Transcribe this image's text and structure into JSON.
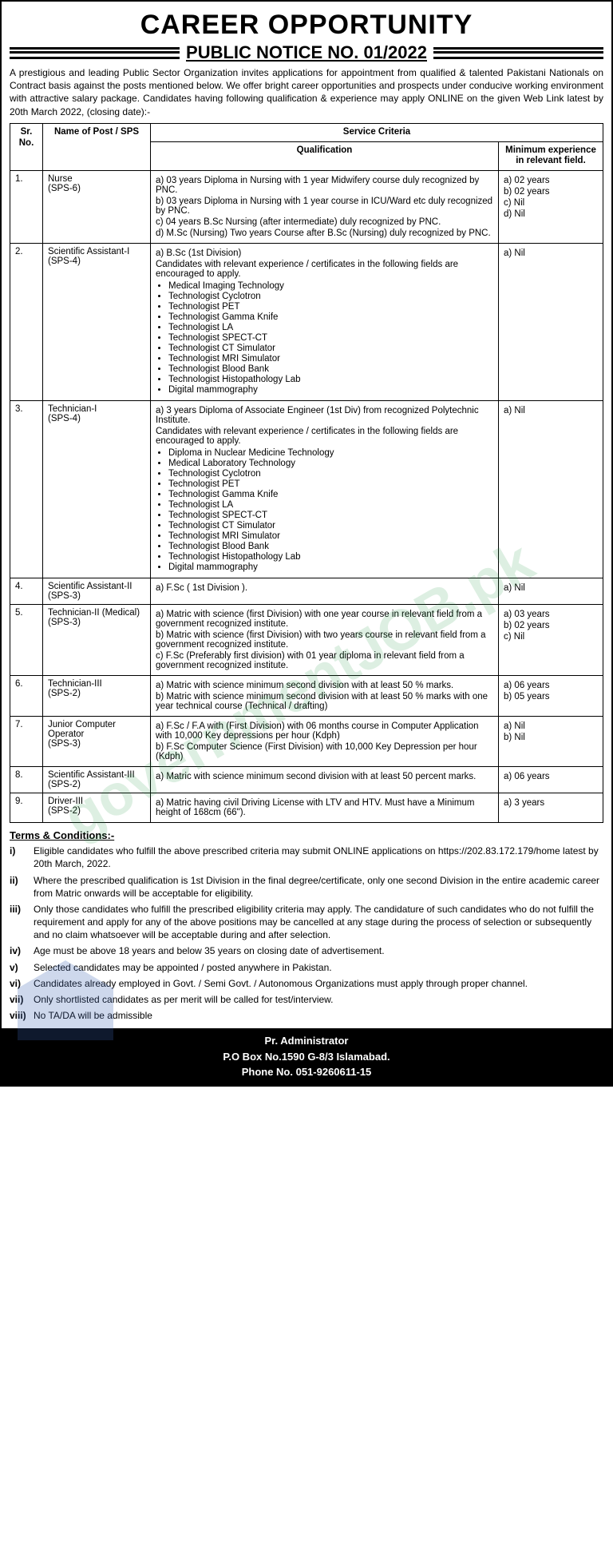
{
  "title": "CAREER OPPORTUNITY",
  "notice": "PUBLIC NOTICE NO. 01/2022",
  "intro": "A prestigious and leading Public Sector Organization invites applications for appointment from qualified & talented Pakistani Nationals on Contract basis against the posts mentioned below. We offer bright career opportunities and prospects under conducive working environment with attractive salary package. Candidates having following qualification & experience may apply ONLINE on the given Web Link latest by 20th March 2022, (closing date):-",
  "th_sr": "Sr. No.",
  "th_post": "Name of Post / SPS",
  "th_service": "Service Criteria",
  "th_qual": "Qualification",
  "th_exp": "Minimum experience in relevant field.",
  "rows": [
    {
      "sr": "1.",
      "post": "Nurse",
      "sps": "(SPS-6)",
      "qual": [
        "a) 03 years Diploma in Nursing with 1 year Midwifery course duly recognized by PNC.",
        "b) 03 years Diploma in Nursing with 1 year course in ICU/Ward etc duly recognized by PNC.",
        "c) 04 years B.Sc Nursing (after intermediate) duly recognized by PNC.",
        "d) M.Sc (Nursing) Two years Course after B.Sc (Nursing) duly recognized by PNC."
      ],
      "exp": [
        "a) 02 years",
        "b) 02 years",
        "c) Nil",
        "d) Nil"
      ]
    },
    {
      "sr": "2.",
      "post": "Scientific Assistant-I",
      "sps": "(SPS-4)",
      "qual_lead": "a) B.Sc (1st Division)",
      "qual_note": "Candidates with relevant experience / certificates in the following fields are encouraged to apply.",
      "bullets": [
        "Medical Imaging Technology",
        "Technologist Cyclotron",
        "Technologist PET",
        "Technologist Gamma Knife",
        "Technologist LA",
        "Technologist SPECT-CT",
        "Technologist CT Simulator",
        "Technologist MRI Simulator",
        "Technologist Blood Bank",
        "Technologist Histopathology Lab",
        "Digital mammography"
      ],
      "exp": [
        "a) Nil"
      ]
    },
    {
      "sr": "3.",
      "post": "Technician-I",
      "sps": "(SPS-4)",
      "qual_lead": "a) 3 years Diploma of Associate Engineer (1st Div) from recognized Polytechnic Institute.",
      "qual_note": "Candidates with relevant experience / certificates in the following fields are encouraged to apply.",
      "bullets": [
        "Diploma in Nuclear Medicine Technology",
        "Medical Laboratory Technology",
        "Technologist Cyclotron",
        "Technologist PET",
        "Technologist Gamma Knife",
        "Technologist LA",
        "Technologist SPECT-CT",
        "Technologist CT Simulator",
        "Technologist MRI Simulator",
        "Technologist Blood Bank",
        "Technologist Histopathology Lab",
        "Digital mammography"
      ],
      "exp": [
        "a) Nil"
      ]
    },
    {
      "sr": "4.",
      "post": "Scientific Assistant-II",
      "sps": "(SPS-3)",
      "qual": [
        "a) F.Sc ( 1st Division )."
      ],
      "exp": [
        "a) Nil"
      ]
    },
    {
      "sr": "5.",
      "post": "Technician-II (Medical)",
      "sps": "(SPS-3)",
      "qual": [
        "a) Matric with science (first Division) with one year course in relevant field from a government recognized institute.",
        "b) Matric with science (first Division) with two years course in relevant field from a government recognized institute.",
        "c) F.Sc (Preferably first division) with 01 year diploma in relevant field from a government recognized institute."
      ],
      "exp": [
        "a) 03 years",
        "b) 02 years",
        "c) Nil"
      ]
    },
    {
      "sr": "6.",
      "post": "Technician-III",
      "sps": "(SPS-2)",
      "qual": [
        "a) Matric with science minimum second division with at least 50 % marks.",
        "b) Matric with science minimum second division with at least 50 % marks with one year technical course (Technical / drafting)"
      ],
      "exp": [
        "a) 06 years",
        "b) 05 years"
      ]
    },
    {
      "sr": "7.",
      "post": "Junior Computer Operator",
      "sps": "(SPS-3)",
      "qual": [
        "a) F.Sc / F.A with (First Division) with 06 months course in Computer Application with 10,000 Key depressions per hour (Kdph)",
        "b) F.Sc Computer Science (First Division) with 10,000 Key Depression per hour (Kdph)"
      ],
      "exp": [
        "a) Nil",
        "b) Nil"
      ]
    },
    {
      "sr": "8.",
      "post": "Scientific Assistant-III",
      "sps": "(SPS-2)",
      "qual": [
        "a) Matric with science minimum second division with at least 50 percent marks."
      ],
      "exp": [
        "a) 06 years"
      ]
    },
    {
      "sr": "9.",
      "post": "Driver-III",
      "sps": "(SPS-2)",
      "qual": [
        "a) Matric having civil Driving License with LTV and HTV. Must have a Minimum height of 168cm (66\")."
      ],
      "exp": [
        "a) 3 years"
      ]
    }
  ],
  "tc_head": "Terms & Conditions:-",
  "tc": [
    {
      "n": "i)",
      "t": "Eligible candidates who fulfill the above prescribed criteria may submit ONLINE applications on https://202.83.172.179/home latest by 20th March, 2022."
    },
    {
      "n": "ii)",
      "t": "Where the prescribed qualification is 1st Division in the final degree/certificate, only one second Division in the entire academic career from Matric onwards will be acceptable for eligibility."
    },
    {
      "n": "iii)",
      "t": "Only those candidates who fulfill the prescribed eligibility criteria may apply. The candidature of such candidates who do not fulfill the requirement and apply for any of the above positions may be cancelled at any stage during the process of selection or subsequently and no claim whatsoever will be acceptable during and after selection."
    },
    {
      "n": "iv)",
      "t": "Age must be above 18 years and below 35 years on closing date of advertisement."
    },
    {
      "n": "v)",
      "t": "Selected candidates may be appointed / posted anywhere in Pakistan."
    },
    {
      "n": "vi)",
      "t": "Candidates already employed in Govt. / Semi Govt. / Autonomous Organizations must apply through proper channel."
    },
    {
      "n": "vii)",
      "t": "Only shortlisted candidates as per merit will be called for test/interview."
    },
    {
      "n": "viii)",
      "t": "No TA/DA will be admissible"
    }
  ],
  "footer": {
    "l1": "Pr. Administrator",
    "l2": "P.O Box No.1590 G-8/3 Islamabad.",
    "l3": "Phone No. 051-9260611-15"
  },
  "watermark": "governmentJOB.pk"
}
